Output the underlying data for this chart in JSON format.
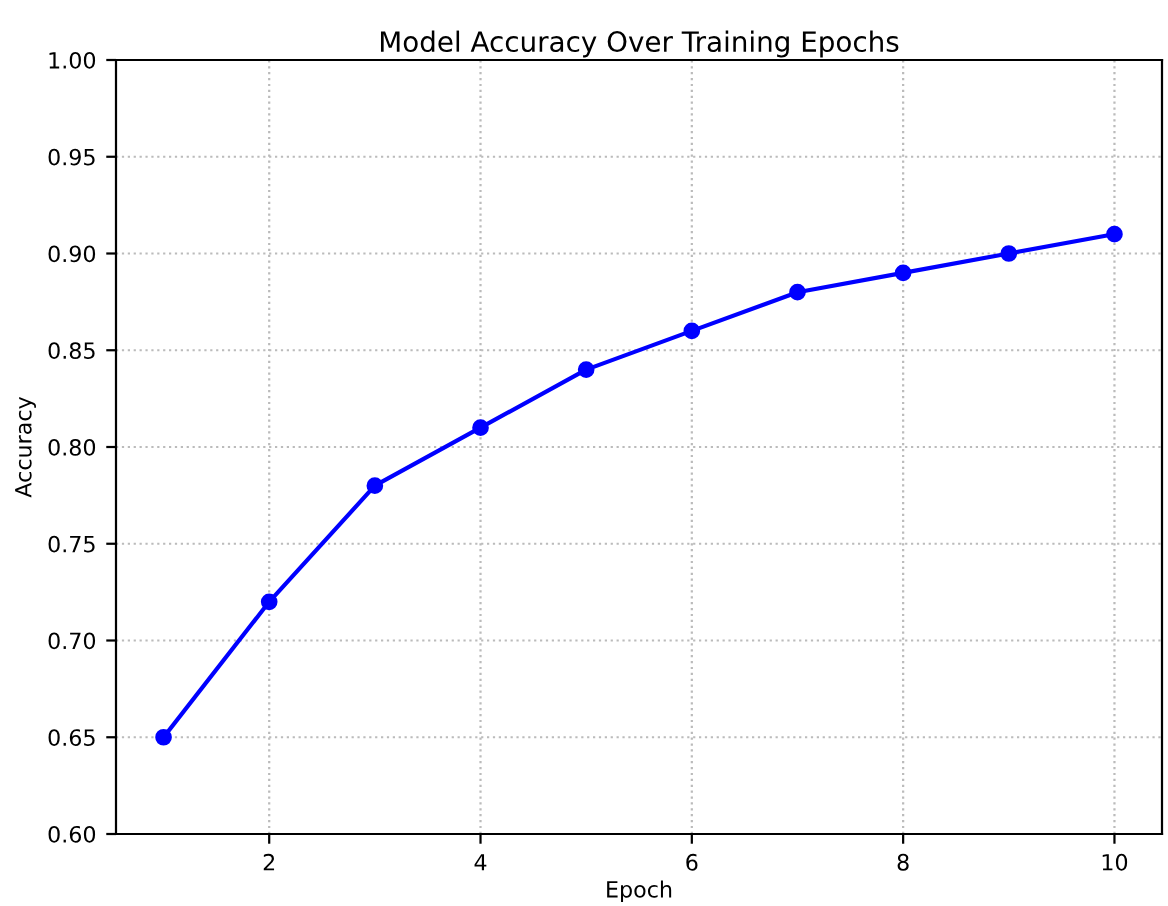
{
  "chart_data": {
    "type": "line",
    "title": "Model Accuracy Over Training Epochs",
    "xlabel": "Epoch",
    "ylabel": "Accuracy",
    "x": [
      1,
      2,
      3,
      4,
      5,
      6,
      7,
      8,
      9,
      10
    ],
    "series": [
      {
        "color": "#0000ff",
        "values": [
          0.65,
          0.72,
          0.78,
          0.81,
          0.84,
          0.86,
          0.88,
          0.89,
          0.9,
          0.91
        ]
      }
    ],
    "xlim": [
      0.55,
      10.45
    ],
    "xticks": [
      2,
      4,
      6,
      8,
      10
    ],
    "ylim": [
      0.6,
      1.0
    ],
    "yticks": [
      {
        "value": 0.6,
        "label": "0.60"
      },
      {
        "value": 0.65,
        "label": "0.65"
      },
      {
        "value": 0.7,
        "label": "0.70"
      },
      {
        "value": 0.75,
        "label": "0.75"
      },
      {
        "value": 0.8,
        "label": "0.80"
      },
      {
        "value": 0.85,
        "label": "0.85"
      },
      {
        "value": 0.9,
        "label": "0.90"
      },
      {
        "value": 0.95,
        "label": "0.95"
      },
      {
        "value": 1.0,
        "label": "1.00"
      }
    ],
    "grid": true,
    "marker": "circle",
    "line_style": "solid"
  }
}
